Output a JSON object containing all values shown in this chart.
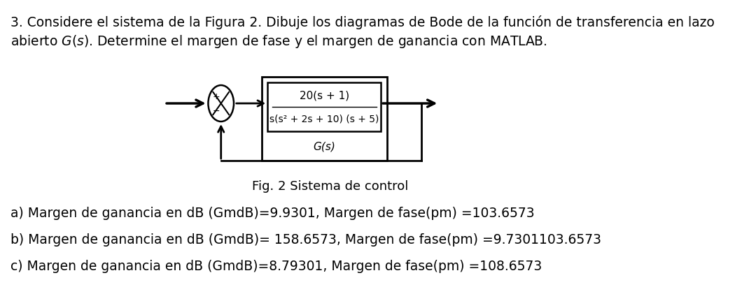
{
  "background_color": "#ffffff",
  "fig_caption": "Fig. 2 Sistema de control",
  "transfer_func_num": "20(s + 1)",
  "transfer_func_den": "s(s² + 2s + 10) (s + 5)",
  "transfer_func_label": "G(s)",
  "answer_a": "a) Margen de ganancia en dB (GmdB)=9.9301, Margen de fase(pm) =103.6573",
  "answer_b": "b) Margen de ganancia en dB (GmdB)= 158.6573, Margen de fase(pm) =9.7301103.6573",
  "answer_c": "c) Margen de ganancia en dB (GmdB)=8.79301, Margen de fase(pm) =108.6573",
  "font_size_main": 13.5,
  "font_size_answers": 13.5,
  "font_size_caption": 13,
  "font_size_tf_num": 11,
  "font_size_tf_den": 10,
  "font_size_label": 11,
  "line1": "3. Considere el sistema de la Figura 2. Dibuje los diagramas de Bode de la función de transferencia en lazo",
  "line2": "abierto $G(s)$. Determine el margen de fase y el margen de ganancia con MATLAB."
}
